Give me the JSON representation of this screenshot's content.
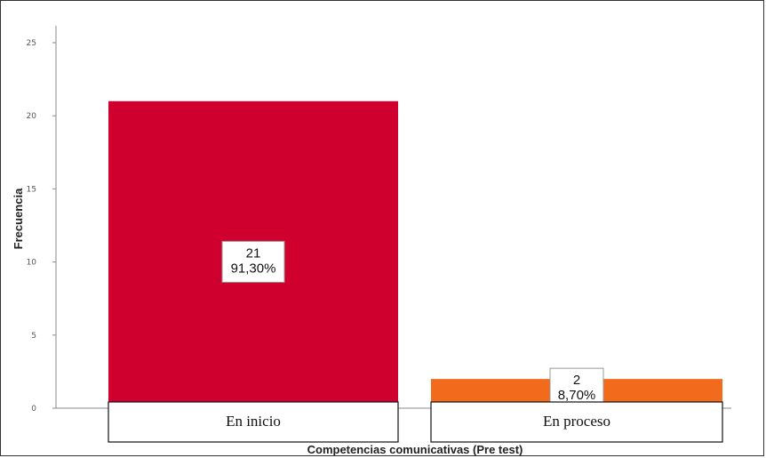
{
  "chart_data": {
    "type": "bar",
    "categories": [
      "En inicio",
      "En proceso"
    ],
    "values": [
      21,
      2
    ],
    "percent_labels": [
      "91,30%",
      "8,70%"
    ],
    "colors": [
      "#d0002e",
      "#f26a1b"
    ],
    "xlabel": "Competencias comunicativas (Pre test)",
    "ylabel": "Frecuencia",
    "ylim": [
      0,
      25
    ],
    "yticks": [
      0,
      5,
      10,
      15,
      20,
      25
    ],
    "grid": false,
    "legend": "none"
  }
}
